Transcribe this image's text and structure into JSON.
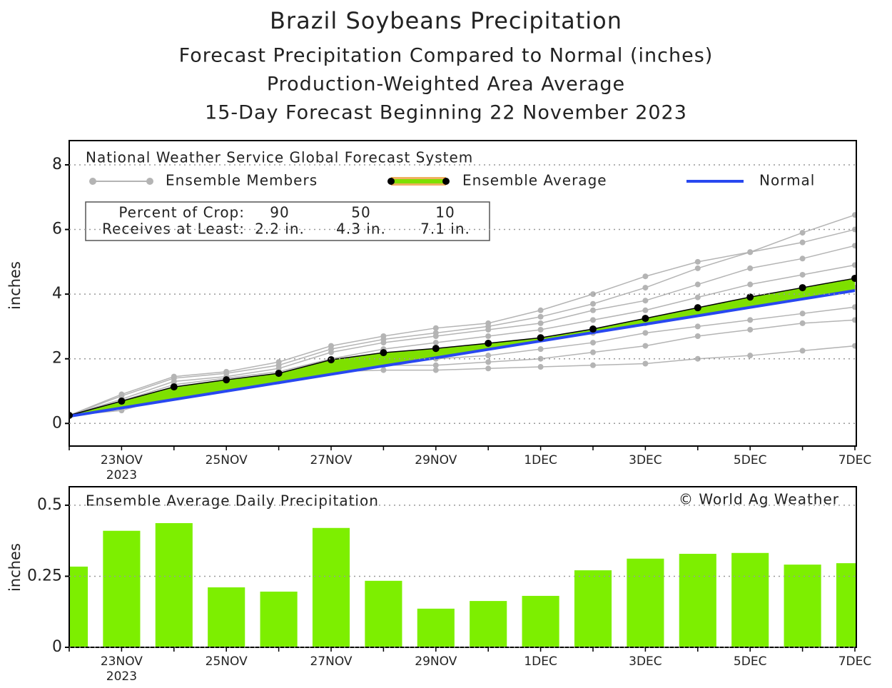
{
  "chart_data": [
    {
      "type": "line",
      "title": "Brazil Soybeans Precipitation",
      "subtitle": [
        "Forecast Precipitation Compared to Normal (inches)",
        "Production-Weighted Area Average",
        "15-Day Forecast Beginning 22 November 2023"
      ],
      "legend_title": "National Weather Service Global Forecast System",
      "y_label": "inches",
      "categories": [
        null,
        "23NOV",
        null,
        "25NOV",
        null,
        "27NOV",
        null,
        "29NOV",
        null,
        "1DEC",
        null,
        "3DEC",
        null,
        "5DEC",
        null,
        "7DEC"
      ],
      "x_year_label": "2023",
      "ylim": [
        -0.7,
        8.75
      ],
      "yticks": [
        0,
        2,
        4,
        6,
        8
      ],
      "grid": true,
      "ensemble_members": {
        "name": "Ensemble Members",
        "color": "#b4b4b4",
        "members": [
          [
            0.25,
            0.9,
            1.45,
            1.6,
            1.9,
            2.4,
            2.7,
            2.95,
            3.1,
            3.5,
            4.0,
            4.55,
            5.0,
            5.3,
            5.9,
            6.45
          ],
          [
            0.25,
            0.85,
            1.4,
            1.55,
            1.8,
            2.3,
            2.6,
            2.8,
            3.0,
            3.3,
            3.7,
            4.2,
            4.8,
            5.3,
            5.6,
            6.0
          ],
          [
            0.25,
            0.75,
            1.3,
            1.45,
            1.7,
            2.2,
            2.5,
            2.7,
            2.9,
            3.1,
            3.5,
            3.8,
            4.3,
            4.8,
            5.1,
            5.5
          ],
          [
            0.25,
            0.7,
            1.2,
            1.4,
            1.6,
            2.0,
            2.3,
            2.5,
            2.7,
            2.9,
            3.2,
            3.5,
            3.9,
            4.3,
            4.6,
            4.9
          ],
          [
            0.25,
            0.65,
            1.05,
            1.3,
            1.5,
            1.9,
            2.1,
            2.2,
            2.4,
            2.6,
            2.8,
            3.1,
            3.4,
            3.7,
            4.0,
            4.2
          ],
          [
            0.25,
            0.6,
            1.0,
            1.2,
            1.4,
            1.8,
            2.0,
            2.0,
            2.1,
            2.3,
            2.5,
            2.8,
            3.0,
            3.2,
            3.4,
            3.6
          ],
          [
            0.25,
            0.55,
            0.95,
            1.15,
            1.35,
            1.7,
            1.8,
            1.8,
            1.9,
            2.0,
            2.2,
            2.4,
            2.7,
            2.9,
            3.1,
            3.2
          ],
          [
            0.25,
            0.4,
            0.85,
            1.05,
            1.3,
            1.6,
            1.65,
            1.65,
            1.7,
            1.75,
            1.8,
            1.85,
            2.0,
            2.1,
            2.25,
            2.4
          ]
        ]
      },
      "series": [
        {
          "name": "Ensemble Average",
          "color": "#000000",
          "fill": "#7ee000",
          "edge": "#f0b060",
          "values": [
            0.25,
            0.69,
            1.13,
            1.35,
            1.55,
            1.97,
            2.19,
            2.32,
            2.48,
            2.65,
            2.92,
            3.25,
            3.58,
            3.91,
            4.2,
            4.49
          ]
        },
        {
          "name": "Normal",
          "color": "#2848f0",
          "values": [
            0.22,
            0.48,
            0.74,
            1.0,
            1.26,
            1.52,
            1.78,
            2.03,
            2.29,
            2.55,
            2.81,
            3.07,
            3.33,
            3.59,
            3.85,
            4.11
          ]
        }
      ],
      "crop_table": {
        "header": "Percent of Crop:",
        "percents": [
          90,
          50,
          10
        ],
        "row_label": "Receives at Least:",
        "amounts": [
          "2.2 in.",
          "4.3 in.",
          "7.1 in."
        ]
      }
    },
    {
      "type": "bar",
      "title": "Ensemble Average Daily Precipitation",
      "credit": "© World Ag Weather",
      "y_label": "inches",
      "categories": [
        null,
        "23NOV",
        null,
        "25NOV",
        null,
        "27NOV",
        null,
        "29NOV",
        null,
        "1DEC",
        null,
        "3DEC",
        null,
        "5DEC",
        null,
        "7DEC"
      ],
      "x_year_label": "2023",
      "ylim": [
        0,
        0.565
      ],
      "yticks": [
        0,
        0.25,
        0.5
      ],
      "grid": true,
      "color": "#7def00",
      "values": [
        0.284,
        0.41,
        0.437,
        0.211,
        0.196,
        0.42,
        0.234,
        0.136,
        0.163,
        0.181,
        0.271,
        0.312,
        0.329,
        0.332,
        0.291,
        0.296
      ]
    }
  ]
}
